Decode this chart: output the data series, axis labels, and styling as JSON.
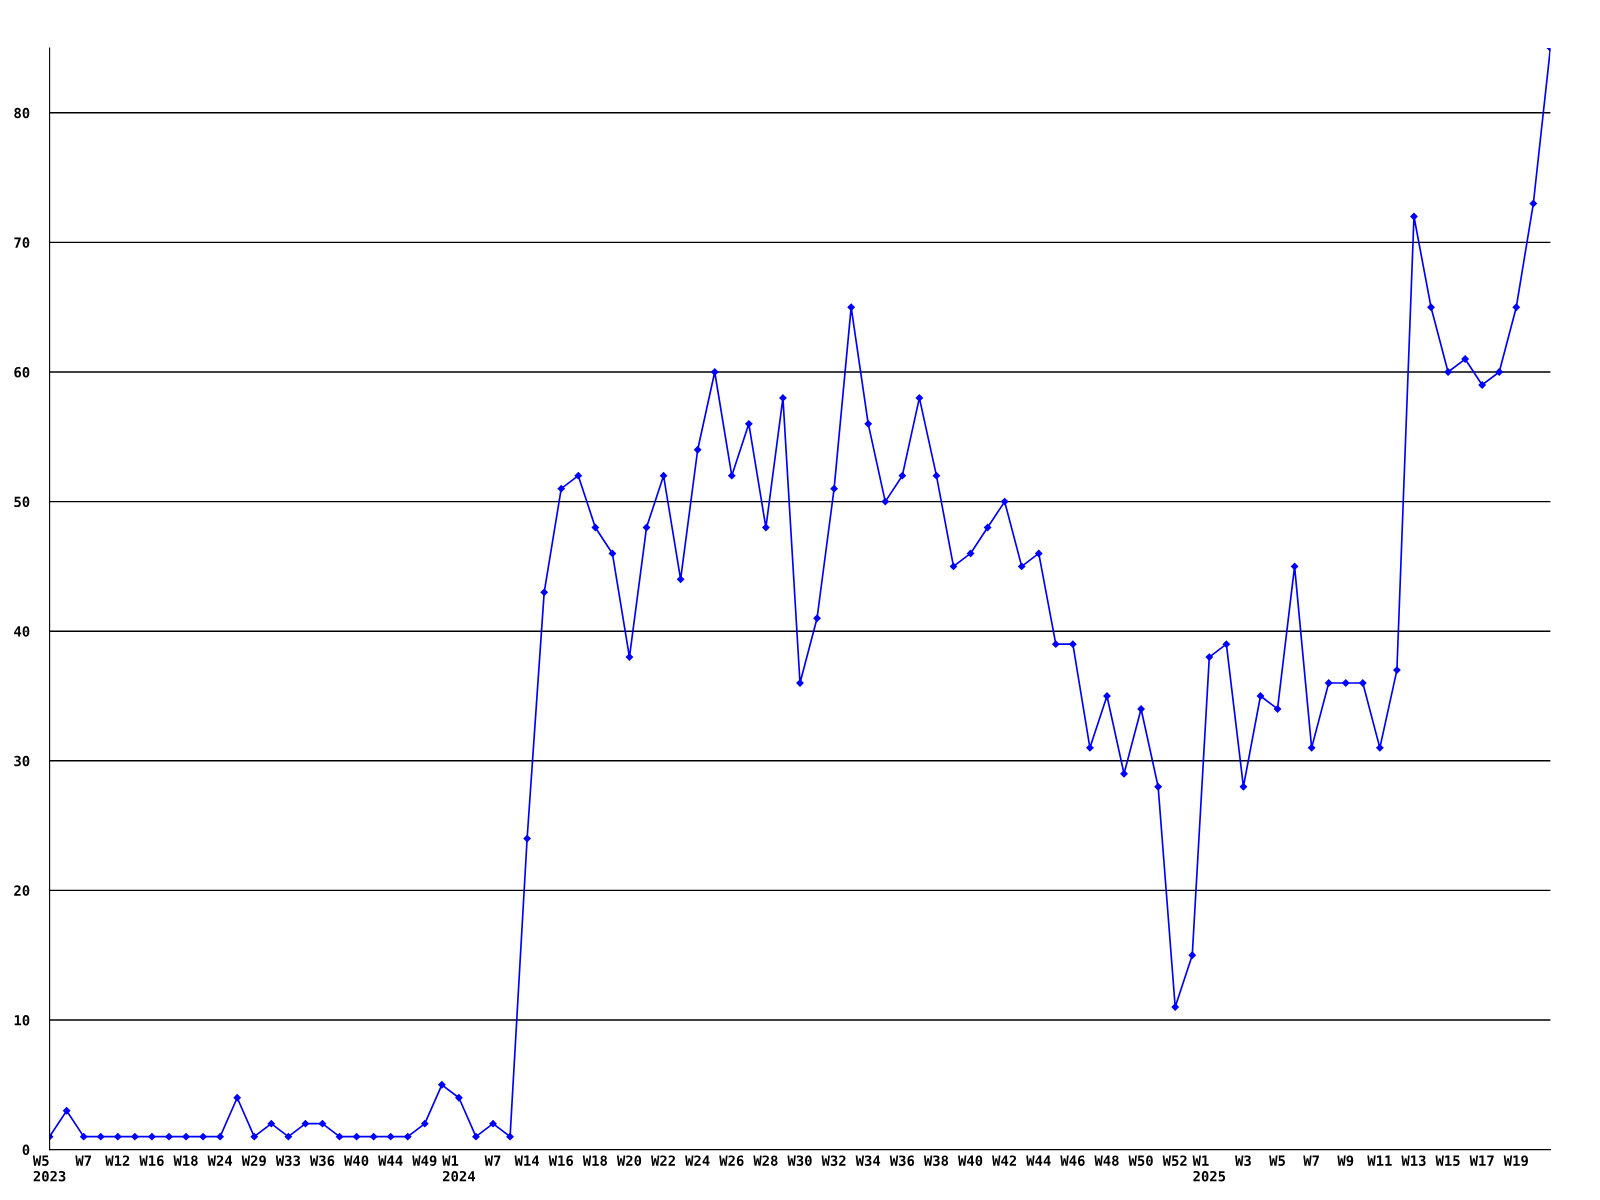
{
  "chart_data": {
    "type": "line",
    "categories": [
      "W5\n2023",
      null,
      "W7",
      null,
      "W12",
      null,
      "W16",
      null,
      "W18",
      null,
      "W24",
      null,
      "W29",
      null,
      "W33",
      null,
      "W36",
      null,
      "W40",
      null,
      "W44",
      null,
      "W49",
      null,
      "W1\n2024",
      null,
      "W7",
      null,
      "W14",
      null,
      "W16",
      null,
      "W18",
      null,
      "W20",
      null,
      "W22",
      null,
      "W24",
      null,
      "W26",
      null,
      "W28",
      null,
      "W30",
      null,
      "W32",
      null,
      "W34",
      null,
      "W36",
      null,
      "W38",
      null,
      "W40",
      null,
      "W42",
      null,
      "W44",
      null,
      "W46",
      null,
      "W48",
      null,
      "W50",
      null,
      "W52",
      null,
      "W1\n2025",
      null,
      "W3",
      null,
      "W5",
      null,
      "W7",
      null,
      "W9",
      null,
      "W11",
      null,
      "W13",
      null,
      "W15",
      null,
      "W17",
      null,
      "W19",
      null,
      null
    ],
    "series": [
      {
        "color": "#0000ff",
        "values": [
          1,
          3,
          1,
          1,
          1,
          1,
          1,
          1,
          1,
          1,
          1,
          4,
          1,
          2,
          1,
          2,
          2,
          1,
          1,
          1,
          1,
          1,
          2,
          5,
          4,
          1,
          2,
          1,
          24,
          43,
          51,
          52,
          48,
          46,
          38,
          48,
          52,
          44,
          54,
          60,
          52,
          56,
          48,
          58,
          36,
          41,
          51,
          65,
          56,
          50,
          52,
          58,
          52,
          45,
          46,
          48,
          50,
          45,
          46,
          39,
          39,
          31,
          35,
          29,
          34,
          28,
          11,
          15,
          38,
          39,
          28,
          35,
          34,
          45,
          31,
          36,
          36,
          36,
          31,
          37,
          72,
          65,
          60,
          61,
          59,
          60,
          65,
          73,
          85
        ]
      }
    ],
    "ylim": [
      0,
      85
    ],
    "yticks": [
      0,
      10,
      20,
      30,
      40,
      50,
      60,
      70,
      80
    ],
    "grid": "y",
    "marker": "diamond",
    "line_style": "solid",
    "legend": false
  }
}
